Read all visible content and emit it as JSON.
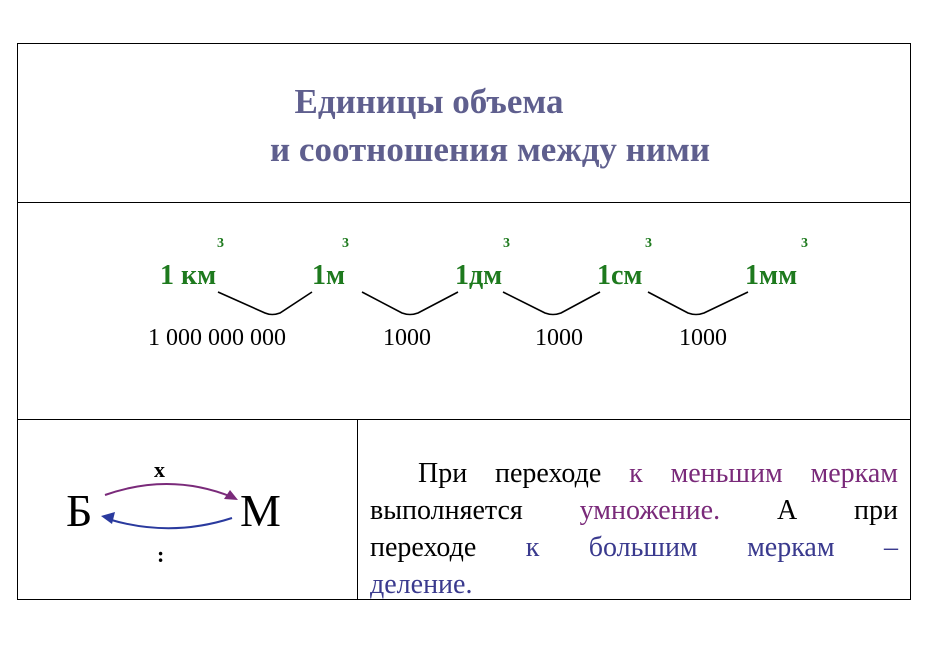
{
  "title": {
    "line1": "Единицы  объема",
    "line2": "и  соотношения между ними"
  },
  "chain": {
    "units": [
      "1 км",
      "1м",
      "1дм",
      "1см",
      "1мм"
    ],
    "exponent": "3",
    "factors": [
      "1 000 000 000",
      "1000",
      "1000",
      "1000"
    ],
    "unit_color": "#1e7a1e"
  },
  "conversion_diagram": {
    "from_letter": "Б",
    "to_letter": "М",
    "forward_op": "х",
    "backward_op": ":",
    "forward_color": "#7a2a7a",
    "backward_color": "#2a3a9e"
  },
  "rule": {
    "part1": "При переходе ",
    "part2": "к меньшим меркам",
    "part3": "выполняется ",
    "part4": "умножение.",
    "part5": "  А  при",
    "part6": "переходе ",
    "part7": "к   большим   меркам –",
    "part8": "деление."
  },
  "colors": {
    "title": "#5f5f8e",
    "purple": "#7a2a7a",
    "blue": "#3a3a8e"
  }
}
